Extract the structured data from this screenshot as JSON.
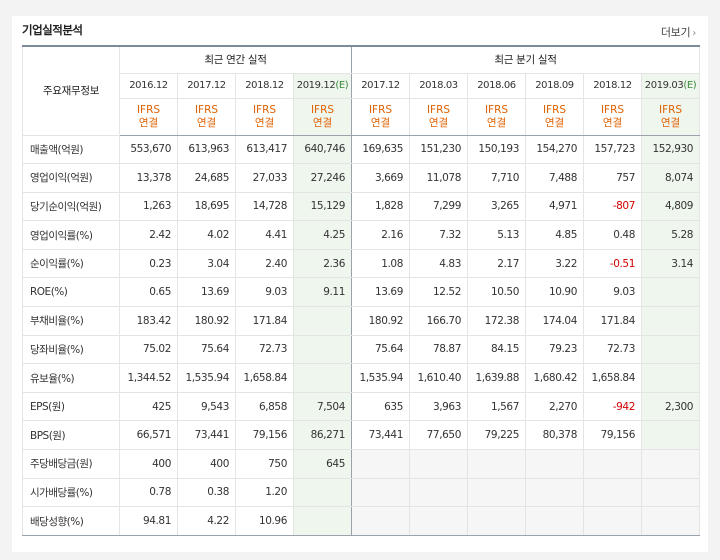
{
  "header": {
    "title": "기업실적분석",
    "more": "더보기"
  },
  "table": {
    "corner": "주요재무정보",
    "group_annual": "최근 연간 실적",
    "group_quarter": "최근 분기 실적",
    "annual_periods": [
      "2016.12",
      "2017.12",
      "2018.12",
      "2019.12"
    ],
    "annual_est_mark": "(E)",
    "quarter_periods": [
      "2017.12",
      "2018.03",
      "2018.06",
      "2018.09",
      "2018.12",
      "2019.03"
    ],
    "quarter_est_mark": "(E)",
    "ifrs_top": "IFRS",
    "ifrs_bottom": "연결",
    "rows": [
      {
        "label": "매출액(억원)",
        "annual": [
          "553,670",
          "613,963",
          "613,417",
          "640,746"
        ],
        "quarter": [
          "169,635",
          "151,230",
          "150,193",
          "154,270",
          "157,723",
          "152,930"
        ]
      },
      {
        "label": "영업이익(억원)",
        "annual": [
          "13,378",
          "24,685",
          "27,033",
          "27,246"
        ],
        "quarter": [
          "3,669",
          "11,078",
          "7,710",
          "7,488",
          "757",
          "8,074"
        ]
      },
      {
        "label": "당기순이익(억원)",
        "annual": [
          "1,263",
          "18,695",
          "14,728",
          "15,129"
        ],
        "quarter": [
          "1,828",
          "7,299",
          "3,265",
          "4,971",
          "-807",
          "4,809"
        ]
      },
      {
        "label": "영업이익률(%)",
        "annual": [
          "2.42",
          "4.02",
          "4.41",
          "4.25"
        ],
        "quarter": [
          "2.16",
          "7.32",
          "5.13",
          "4.85",
          "0.48",
          "5.28"
        ]
      },
      {
        "label": "순이익률(%)",
        "annual": [
          "0.23",
          "3.04",
          "2.40",
          "2.36"
        ],
        "quarter": [
          "1.08",
          "4.83",
          "2.17",
          "3.22",
          "-0.51",
          "3.14"
        ]
      },
      {
        "label": "ROE(%)",
        "annual": [
          "0.65",
          "13.69",
          "9.03",
          "9.11"
        ],
        "quarter": [
          "13.69",
          "12.52",
          "10.50",
          "10.90",
          "9.03",
          ""
        ]
      },
      {
        "label": "부채비율(%)",
        "annual": [
          "183.42",
          "180.92",
          "171.84",
          ""
        ],
        "quarter": [
          "180.92",
          "166.70",
          "172.38",
          "174.04",
          "171.84",
          ""
        ]
      },
      {
        "label": "당좌비율(%)",
        "annual": [
          "75.02",
          "75.64",
          "72.73",
          ""
        ],
        "quarter": [
          "75.64",
          "78.87",
          "84.15",
          "79.23",
          "72.73",
          ""
        ]
      },
      {
        "label": "유보율(%)",
        "annual": [
          "1,344.52",
          "1,535.94",
          "1,658.84",
          ""
        ],
        "quarter": [
          "1,535.94",
          "1,610.40",
          "1,639.88",
          "1,680.42",
          "1,658.84",
          ""
        ]
      },
      {
        "label": "EPS(원)",
        "annual": [
          "425",
          "9,543",
          "6,858",
          "7,504"
        ],
        "quarter": [
          "635",
          "3,963",
          "1,567",
          "2,270",
          "-942",
          "2,300"
        ]
      },
      {
        "label": "BPS(원)",
        "annual": [
          "66,571",
          "73,441",
          "79,156",
          "86,271"
        ],
        "quarter": [
          "73,441",
          "77,650",
          "79,225",
          "80,378",
          "79,156",
          ""
        ]
      },
      {
        "label": "주당배당금(원)",
        "annual": [
          "400",
          "400",
          "750",
          "645"
        ],
        "quarter": [
          "",
          "",
          "",
          "",
          "",
          ""
        ]
      },
      {
        "label": "시가배당률(%)",
        "annual": [
          "0.78",
          "0.38",
          "1.20",
          ""
        ],
        "quarter": [
          "",
          "",
          "",
          "",
          "",
          ""
        ]
      },
      {
        "label": "배당성향(%)",
        "annual": [
          "94.81",
          "4.22",
          "10.96",
          ""
        ],
        "quarter": [
          "",
          "",
          "",
          "",
          "",
          ""
        ]
      }
    ],
    "row_group_starts": [
      3,
      6,
      9,
      11
    ],
    "colors": {
      "ifrs": "#e26000",
      "negative": "#d10000",
      "estimate_bg": "#eff6ee",
      "empty_bg": "#f6f6f6",
      "estimate_mark": "#3a8a3a"
    }
  }
}
